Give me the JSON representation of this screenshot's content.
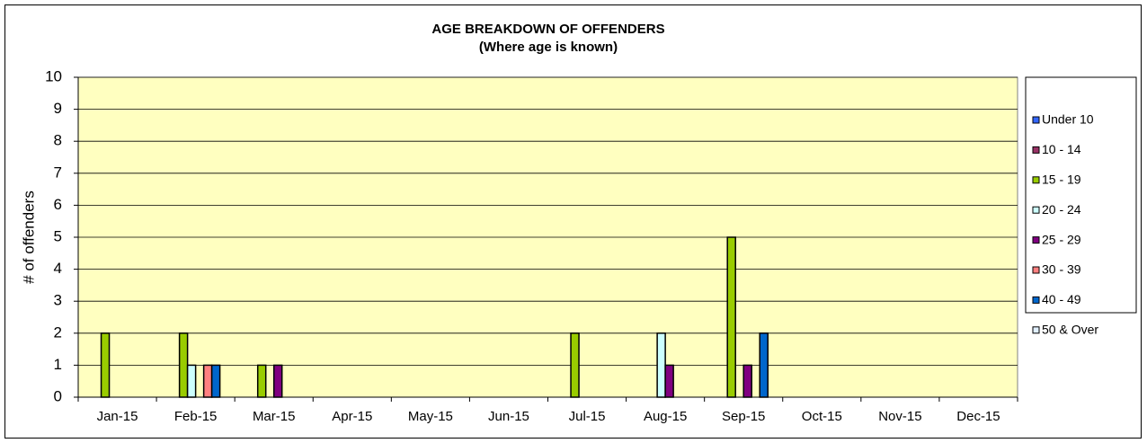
{
  "chart_data": {
    "type": "bar",
    "title": "AGE BREAKDOWN OF OFFENDERS",
    "subtitle": "(Where age is known)",
    "y_label": "# of offenders",
    "categories": [
      "Jan-15",
      "Feb-15",
      "Mar-15",
      "Apr-15",
      "May-15",
      "Jun-15",
      "Jul-15",
      "Aug-15",
      "Sep-15",
      "Oct-15",
      "Nov-15",
      "Dec-15"
    ],
    "series": [
      {
        "name": "Under 10",
        "color": "#3366ff",
        "values": [
          0,
          0,
          0,
          0,
          0,
          0,
          0,
          0,
          0,
          0,
          0,
          0
        ]
      },
      {
        "name": "10 - 14",
        "color": "#993366",
        "values": [
          0,
          0,
          0,
          0,
          0,
          0,
          0,
          0,
          0,
          0,
          0,
          0
        ]
      },
      {
        "name": "15 - 19",
        "color": "#99cc00",
        "values": [
          2,
          2,
          1,
          0,
          0,
          0,
          2,
          0,
          5,
          0,
          0,
          0
        ]
      },
      {
        "name": "20 - 24",
        "color": "#ccffff",
        "values": [
          0,
          1,
          0,
          0,
          0,
          0,
          0,
          2,
          0,
          0,
          0,
          0
        ]
      },
      {
        "name": "25 - 29",
        "color": "#800080",
        "values": [
          0,
          0,
          1,
          0,
          0,
          0,
          0,
          1,
          1,
          0,
          0,
          0
        ]
      },
      {
        "name": "30 - 39",
        "color": "#ff8080",
        "values": [
          0,
          1,
          0,
          0,
          0,
          0,
          0,
          0,
          0,
          0,
          0,
          0
        ]
      },
      {
        "name": "40 - 49",
        "color": "#0066cc",
        "values": [
          0,
          1,
          0,
          0,
          0,
          0,
          0,
          0,
          2,
          0,
          0,
          0
        ]
      },
      {
        "name": "50 & Over",
        "color": "#e0efff",
        "values": [
          0,
          0,
          0,
          0,
          0,
          0,
          0,
          0,
          0,
          0,
          0,
          0
        ]
      }
    ],
    "ylim": [
      0,
      10
    ],
    "yticks": [
      0,
      1,
      2,
      3,
      4,
      5,
      6,
      7,
      8,
      9,
      10
    ],
    "grid": true,
    "legend": "right",
    "plot_background": "#ffffc0"
  }
}
